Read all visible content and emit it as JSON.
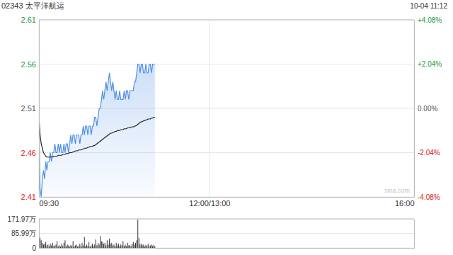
{
  "chart_data": [
    {
      "type": "line",
      "title": "02343 太平洋航运",
      "subtitle": "10-04 11:12",
      "annotations": [
        "sina.com"
      ],
      "grid": true,
      "x": [
        0,
        1,
        2,
        3,
        4,
        5,
        6,
        7,
        8,
        9,
        10,
        11,
        12,
        13,
        14,
        15,
        16,
        17,
        18,
        19,
        20,
        21,
        22,
        23,
        24,
        25,
        26,
        27,
        28,
        29,
        30,
        31,
        32,
        33,
        34,
        35,
        36,
        37,
        38,
        39,
        40,
        41,
        42,
        43,
        44,
        45,
        46,
        47,
        48,
        49,
        50,
        51,
        52,
        53,
        54,
        55,
        56,
        57,
        58,
        59,
        60,
        61,
        62,
        63,
        64,
        65,
        66,
        67,
        68,
        69,
        70,
        71,
        72,
        73,
        74,
        75,
        76,
        77,
        78,
        79,
        80,
        81,
        82,
        83,
        84,
        85,
        86,
        87,
        88,
        89,
        90,
        91,
        92,
        93,
        94,
        95,
        96,
        97,
        98,
        99,
        100,
        101,
        102
      ],
      "xlim": [
        0,
        330
      ],
      "xticks": [
        {
          "value": 0,
          "label": "09:30"
        },
        {
          "value": 150,
          "label": "12:00/13:00"
        },
        {
          "value": 330,
          "label": "16:00"
        }
      ],
      "ylim": [
        2.41,
        2.61
      ],
      "yticks": [
        2.61,
        2.56,
        2.51,
        2.46,
        2.41
      ],
      "y2lim": [
        -4.08,
        4.08
      ],
      "y2ticks": [
        {
          "value": 4.08,
          "label": "+4.08%"
        },
        {
          "value": 2.04,
          "label": "+2.04%"
        },
        {
          "value": 0,
          "label": "0.00%"
        },
        {
          "value": -2.04,
          "label": "-2.04%"
        },
        {
          "value": -4.08,
          "label": "-4.08%"
        }
      ],
      "series": [
        {
          "color": "#4d8ee8",
          "values": [
            2.49,
            2.42,
            2.41,
            2.43,
            2.44,
            2.43,
            2.45,
            2.44,
            2.45,
            2.45,
            2.46,
            2.45,
            2.46,
            2.46,
            2.47,
            2.46,
            2.46,
            2.47,
            2.46,
            2.47,
            2.46,
            2.46,
            2.47,
            2.46,
            2.47,
            2.47,
            2.46,
            2.47,
            2.48,
            2.47,
            2.48,
            2.48,
            2.47,
            2.48,
            2.48,
            2.48,
            2.47,
            2.48,
            2.48,
            2.49,
            2.48,
            2.49,
            2.49,
            2.48,
            2.49,
            2.49,
            2.48,
            2.49,
            2.49,
            2.5,
            2.5,
            2.49,
            2.5,
            2.51,
            2.51,
            2.52,
            2.53,
            2.52,
            2.53,
            2.54,
            2.53,
            2.54,
            2.55,
            2.54,
            2.53,
            2.54,
            2.53,
            2.52,
            2.53,
            2.52,
            2.52,
            2.53,
            2.52,
            2.52,
            2.52,
            2.53,
            2.52,
            2.53,
            2.53,
            2.52,
            2.53,
            2.53,
            2.53,
            2.53,
            2.54,
            2.54,
            2.55,
            2.56,
            2.56,
            2.55,
            2.56,
            2.56,
            2.55,
            2.55,
            2.56,
            2.55,
            2.55,
            2.56,
            2.56,
            2.55,
            2.56,
            2.56,
            2.56
          ]
        },
        {
          "color": "#222222",
          "values": [
            2.5,
            2.48,
            2.47,
            2.465,
            2.46,
            2.458,
            2.456,
            2.455,
            2.455,
            2.455,
            2.455,
            2.455,
            2.455,
            2.456,
            2.456,
            2.456,
            2.456,
            2.457,
            2.457,
            2.457,
            2.457,
            2.458,
            2.458,
            2.458,
            2.459,
            2.459,
            2.459,
            2.46,
            2.46,
            2.46,
            2.461,
            2.461,
            2.462,
            2.462,
            2.462,
            2.463,
            2.463,
            2.463,
            2.464,
            2.464,
            2.465,
            2.465,
            2.465,
            2.466,
            2.466,
            2.467,
            2.467,
            2.467,
            2.468,
            2.468,
            2.469,
            2.47,
            2.471,
            2.472,
            2.473,
            2.474,
            2.475,
            2.476,
            2.477,
            2.478,
            2.479,
            2.48,
            2.481,
            2.482,
            2.482,
            2.483,
            2.483,
            2.484,
            2.484,
            2.485,
            2.485,
            2.485,
            2.486,
            2.486,
            2.486,
            2.487,
            2.487,
            2.487,
            2.488,
            2.488,
            2.488,
            2.489,
            2.489,
            2.489,
            2.49,
            2.49,
            2.491,
            2.492,
            2.493,
            2.494,
            2.495,
            2.495,
            2.496,
            2.496,
            2.497,
            2.497,
            2.498,
            2.498,
            2.498,
            2.499,
            2.499,
            2.5,
            2.5
          ]
        }
      ]
    },
    {
      "type": "bar",
      "grid": true,
      "tick_labels": "y",
      "color": "#333333",
      "x": [
        0,
        1,
        2,
        3,
        4,
        5,
        6,
        7,
        8,
        9,
        10,
        11,
        12,
        13,
        14,
        15,
        16,
        17,
        18,
        19,
        20,
        21,
        22,
        23,
        24,
        25,
        26,
        27,
        28,
        29,
        30,
        31,
        32,
        33,
        34,
        35,
        36,
        37,
        38,
        39,
        40,
        41,
        42,
        43,
        44,
        45,
        46,
        47,
        48,
        49,
        50,
        51,
        52,
        53,
        54,
        55,
        56,
        57,
        58,
        59,
        60,
        61,
        62,
        63,
        64,
        65,
        66,
        67,
        68,
        69,
        70,
        71,
        72,
        73,
        74,
        75,
        76,
        77,
        78,
        79,
        80,
        81,
        82,
        83,
        84,
        85,
        86,
        87,
        88,
        89,
        90,
        91,
        92,
        93,
        94,
        95,
        96,
        97,
        98,
        99,
        100,
        101,
        102
      ],
      "xlim": [
        0,
        330
      ],
      "ylim": [
        0,
        171.97
      ],
      "yticks": [
        {
          "value": 171.97,
          "label": "171.97万"
        },
        {
          "value": 85.99,
          "label": "85.99万"
        },
        0
      ],
      "values": [
        110,
        60,
        45,
        30,
        20,
        25,
        35,
        15,
        20,
        10,
        25,
        15,
        30,
        10,
        15,
        20,
        40,
        10,
        15,
        8,
        25,
        12,
        30,
        45,
        10,
        20,
        15,
        8,
        18,
        12,
        40,
        10,
        15,
        20,
        8,
        12,
        25,
        10,
        30,
        15,
        65,
        10,
        20,
        12,
        35,
        8,
        15,
        25,
        10,
        20,
        50,
        15,
        30,
        20,
        70,
        40,
        35,
        25,
        30,
        15,
        45,
        20,
        55,
        25,
        30,
        15,
        20,
        10,
        30,
        15,
        25,
        10,
        20,
        15,
        40,
        12,
        20,
        10,
        30,
        15,
        18,
        10,
        25,
        35,
        20,
        30,
        45,
        168,
        60,
        20,
        25,
        15,
        20,
        10,
        18,
        12,
        25,
        10,
        15,
        20,
        12,
        18,
        10
      ]
    }
  ]
}
